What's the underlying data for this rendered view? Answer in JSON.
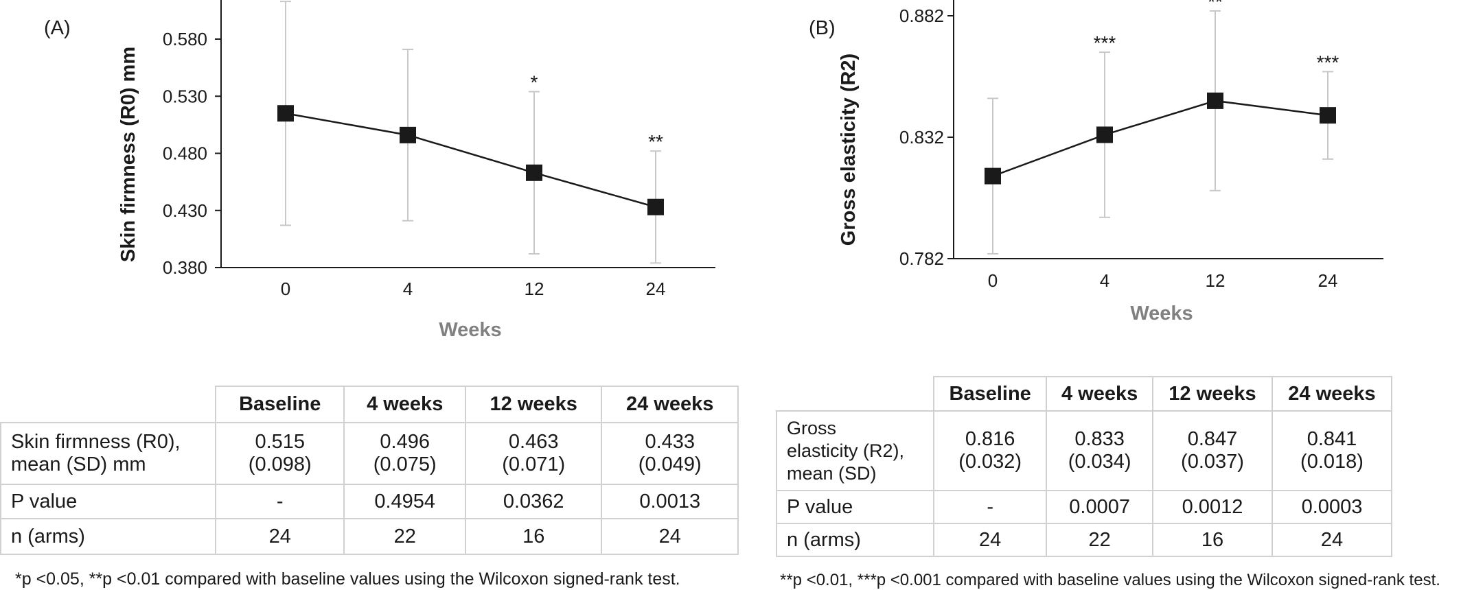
{
  "chart_data": [
    {
      "panel": "(A)",
      "type": "line",
      "categories": [
        "0",
        "4",
        "12",
        "24"
      ],
      "series": [
        {
          "values": [
            0.515,
            0.496,
            0.463,
            0.433
          ],
          "sd": [
            0.098,
            0.075,
            0.071,
            0.049
          ],
          "significance": [
            "",
            "",
            "*",
            "**"
          ]
        }
      ],
      "xlabel": "Weeks",
      "ylabel": "Skin firmness (R0) mm",
      "ylim": [
        0.38,
        0.58
      ],
      "yticks": [
        "0.380",
        "0.430",
        "0.480",
        "0.530",
        "0.580"
      ],
      "tick_values": [
        0.38,
        0.43,
        0.48,
        0.53,
        0.58
      ],
      "grid": false
    },
    {
      "panel": "(B)",
      "type": "line",
      "categories": [
        "0",
        "4",
        "12",
        "24"
      ],
      "series": [
        {
          "values": [
            0.816,
            0.833,
            0.847,
            0.841
          ],
          "sd": [
            0.032,
            0.034,
            0.037,
            0.018
          ],
          "significance": [
            "",
            "***",
            "**",
            "***"
          ]
        }
      ],
      "xlabel": "Weeks",
      "ylabel": "Gross elasticity (R2)",
      "ylim": [
        0.782,
        0.882
      ],
      "yticks": [
        "0.782",
        "0.832",
        "0.882"
      ],
      "tick_values": [
        0.782,
        0.832,
        0.882
      ],
      "grid": false
    }
  ],
  "tables": [
    {
      "headers": [
        "Baseline",
        "4 weeks",
        "12 weeks",
        "24 weeks"
      ],
      "rows": [
        {
          "label": [
            "Skin firmness (R0),",
            "mean (SD) mm"
          ],
          "cells": [
            [
              "0.515",
              "(0.098)"
            ],
            [
              "0.496",
              "(0.075)"
            ],
            [
              "0.463",
              "(0.071)"
            ],
            [
              "0.433",
              "(0.049)"
            ]
          ]
        },
        {
          "label": [
            "P value"
          ],
          "cells": [
            [
              "-"
            ],
            [
              "0.4954"
            ],
            [
              "0.0362"
            ],
            [
              "0.0013"
            ]
          ]
        },
        {
          "label": [
            "n (arms)"
          ],
          "cells": [
            [
              "24"
            ],
            [
              "22"
            ],
            [
              "16"
            ],
            [
              "24"
            ]
          ]
        }
      ],
      "note": "*p <0.05, **p <0.01 compared with baseline values using the Wilcoxon signed-rank test."
    },
    {
      "headers": [
        "Baseline",
        "4 weeks",
        "12 weeks",
        "24 weeks"
      ],
      "rows": [
        {
          "label": [
            "Gross",
            "elasticity (R2),",
            "mean (SD)"
          ],
          "cells": [
            [
              "0.816",
              "(0.032)"
            ],
            [
              "0.833",
              "(0.034)"
            ],
            [
              "0.847",
              "(0.037)"
            ],
            [
              "0.841",
              "(0.018)"
            ]
          ]
        },
        {
          "label": [
            "P value"
          ],
          "cells": [
            [
              "-"
            ],
            [
              "0.0007"
            ],
            [
              "0.0012"
            ],
            [
              "0.0003"
            ]
          ]
        },
        {
          "label": [
            "n (arms)"
          ],
          "cells": [
            [
              "24"
            ],
            [
              "22"
            ],
            [
              "16"
            ],
            [
              "24"
            ]
          ]
        }
      ],
      "note": "**p <0.01, ***p <0.001 compared with baseline values using the Wilcoxon signed-rank test."
    }
  ],
  "colors": {
    "line": "#1a1a1a",
    "errorbar": "#c8c8c8",
    "axis_title_x": "#808080",
    "axis_title_y": "#1a1a1a",
    "table_border": "#d0d0d0"
  }
}
